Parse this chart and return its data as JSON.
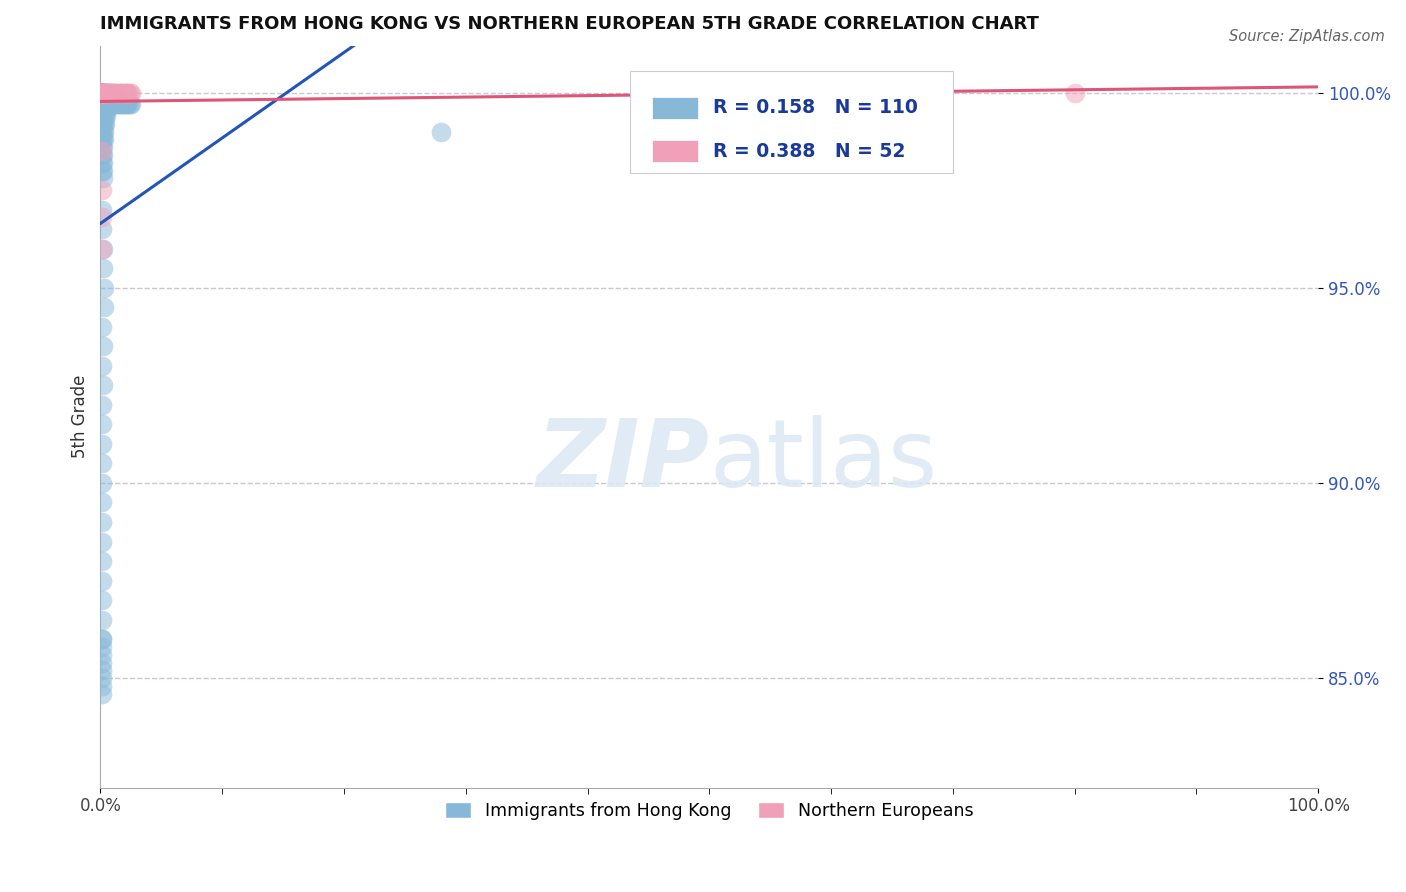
{
  "title": "IMMIGRANTS FROM HONG KONG VS NORTHERN EUROPEAN 5TH GRADE CORRELATION CHART",
  "source": "Source: ZipAtlas.com",
  "ylabel": "5th Grade",
  "xlim": [
    0.0,
    1.0
  ],
  "ylim": [
    0.822,
    1.012
  ],
  "yticks": [
    0.85,
    0.9,
    0.95,
    1.0
  ],
  "ytick_labels": [
    "85.0%",
    "90.0%",
    "95.0%",
    "100.0%"
  ],
  "blue_R": 0.158,
  "blue_N": 110,
  "pink_R": 0.388,
  "pink_N": 52,
  "blue_color": "#88b8d8",
  "pink_color": "#f0a0b8",
  "blue_line_color": "#2255bb",
  "pink_line_color": "#dd5577",
  "legend_R_color": "#1a3a9a",
  "background_color": "#ffffff",
  "grid_color": "#c8c8d8",
  "watermark_color": "#dce8f4",
  "blue_scatter_x": [
    0.001,
    0.001,
    0.001,
    0.001,
    0.001,
    0.001,
    0.001,
    0.001,
    0.001,
    0.001,
    0.001,
    0.001,
    0.001,
    0.001,
    0.001,
    0.001,
    0.001,
    0.001,
    0.001,
    0.001,
    0.002,
    0.002,
    0.002,
    0.002,
    0.002,
    0.002,
    0.002,
    0.002,
    0.002,
    0.002,
    0.002,
    0.002,
    0.002,
    0.002,
    0.002,
    0.003,
    0.003,
    0.003,
    0.003,
    0.003,
    0.003,
    0.003,
    0.003,
    0.004,
    0.004,
    0.004,
    0.004,
    0.004,
    0.005,
    0.005,
    0.005,
    0.005,
    0.006,
    0.006,
    0.006,
    0.007,
    0.007,
    0.008,
    0.008,
    0.009,
    0.009,
    0.01,
    0.01,
    0.011,
    0.012,
    0.013,
    0.014,
    0.015,
    0.016,
    0.017,
    0.018,
    0.019,
    0.02,
    0.021,
    0.022,
    0.023,
    0.024,
    0.025,
    0.001,
    0.001,
    0.002,
    0.002,
    0.003,
    0.003,
    0.001,
    0.002,
    0.001,
    0.002,
    0.001,
    0.001,
    0.001,
    0.001,
    0.001,
    0.001,
    0.001,
    0.001,
    0.001,
    0.001,
    0.001,
    0.001,
    0.001,
    0.001,
    0.001,
    0.001,
    0.001,
    0.001,
    0.001,
    0.001,
    0.001,
    0.28
  ],
  "blue_scatter_y": [
    1.0,
    1.0,
    1.0,
    1.0,
    1.0,
    1.0,
    1.0,
    1.0,
    1.0,
    1.0,
    0.998,
    0.996,
    0.994,
    0.992,
    0.99,
    0.988,
    0.986,
    0.984,
    0.982,
    0.98,
    1.0,
    1.0,
    1.0,
    1.0,
    0.998,
    0.996,
    0.994,
    0.992,
    0.99,
    0.988,
    0.986,
    0.984,
    0.982,
    0.98,
    0.978,
    1.0,
    1.0,
    0.998,
    0.996,
    0.994,
    0.992,
    0.99,
    0.988,
    1.0,
    0.998,
    0.996,
    0.994,
    0.992,
    1.0,
    0.998,
    0.996,
    0.994,
    1.0,
    0.998,
    0.996,
    1.0,
    0.998,
    1.0,
    0.998,
    1.0,
    0.997,
    1.0,
    0.997,
    0.997,
    0.997,
    0.997,
    0.997,
    0.997,
    0.997,
    0.997,
    0.997,
    0.997,
    0.997,
    0.997,
    0.997,
    0.997,
    0.997,
    0.997,
    0.97,
    0.965,
    0.96,
    0.955,
    0.95,
    0.945,
    0.94,
    0.935,
    0.93,
    0.925,
    0.92,
    0.915,
    0.91,
    0.905,
    0.9,
    0.895,
    0.89,
    0.885,
    0.88,
    0.875,
    0.87,
    0.865,
    0.86,
    0.86,
    0.858,
    0.856,
    0.854,
    0.852,
    0.85,
    0.848,
    0.846,
    0.99
  ],
  "pink_scatter_x": [
    0.001,
    0.001,
    0.001,
    0.001,
    0.001,
    0.001,
    0.001,
    0.001,
    0.001,
    0.001,
    0.002,
    0.002,
    0.002,
    0.002,
    0.002,
    0.002,
    0.003,
    0.003,
    0.003,
    0.003,
    0.004,
    0.004,
    0.004,
    0.005,
    0.005,
    0.006,
    0.006,
    0.007,
    0.008,
    0.009,
    0.01,
    0.011,
    0.012,
    0.013,
    0.014,
    0.015,
    0.016,
    0.017,
    0.018,
    0.019,
    0.02,
    0.021,
    0.022,
    0.023,
    0.024,
    0.025,
    0.001,
    0.001,
    0.001,
    0.001,
    0.68,
    0.8
  ],
  "pink_scatter_y": [
    1.0,
    1.0,
    1.0,
    1.0,
    1.0,
    1.0,
    1.0,
    1.0,
    1.0,
    1.0,
    1.0,
    1.0,
    1.0,
    1.0,
    1.0,
    1.0,
    1.0,
    1.0,
    1.0,
    1.0,
    1.0,
    1.0,
    1.0,
    1.0,
    1.0,
    1.0,
    1.0,
    1.0,
    1.0,
    1.0,
    1.0,
    1.0,
    1.0,
    1.0,
    1.0,
    1.0,
    1.0,
    1.0,
    1.0,
    1.0,
    1.0,
    1.0,
    1.0,
    1.0,
    1.0,
    1.0,
    0.985,
    0.975,
    0.968,
    0.96,
    1.0,
    1.0
  ]
}
